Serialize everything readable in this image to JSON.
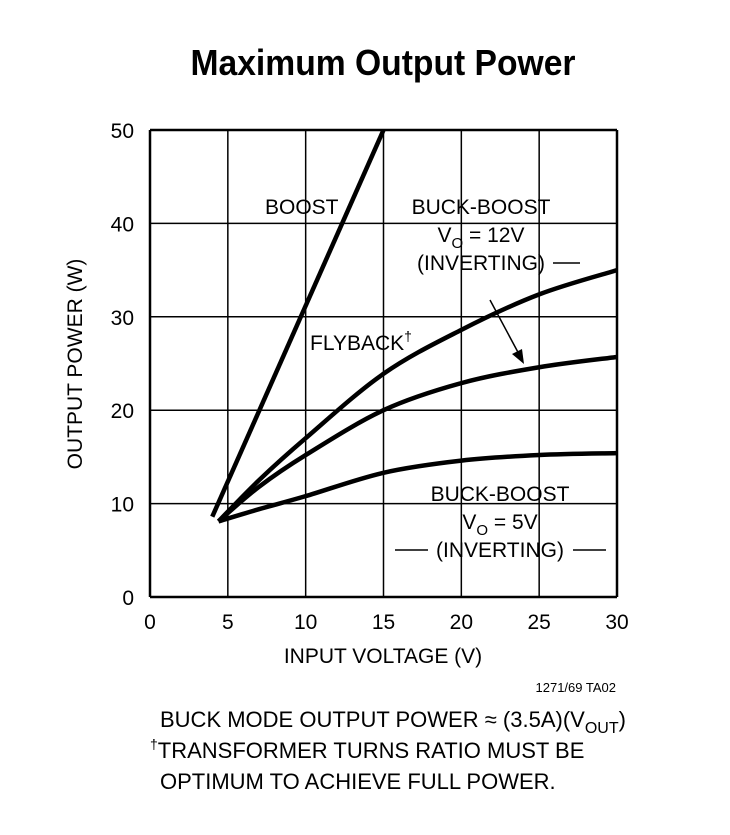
{
  "chart_data": {
    "type": "line",
    "title": "Maximum Output Power",
    "xlabel": "INPUT VOLTAGE (V)",
    "ylabel": "OUTPUT POWER (W)",
    "xlim": [
      0,
      30
    ],
    "ylim": [
      0,
      50
    ],
    "xticks": [
      "0",
      "5",
      "10",
      "15",
      "20",
      "25",
      "30"
    ],
    "yticks": [
      "0",
      "10",
      "20",
      "30",
      "40",
      "50"
    ],
    "grid": true,
    "series": [
      {
        "name": "BOOST",
        "x": [
          4,
          15
        ],
        "y": [
          8.6,
          50
        ]
      },
      {
        "name": "FLYBACK†",
        "x": [
          4.4,
          7,
          10,
          15,
          20,
          25,
          30
        ],
        "y": [
          8.1,
          12.5,
          17,
          23.9,
          28.6,
          32.4,
          35
        ]
      },
      {
        "name": "BUCK-BOOST VO = 12V (INVERTING)",
        "x": [
          4.4,
          7,
          10,
          15,
          20,
          25,
          30
        ],
        "y": [
          8.1,
          11.8,
          15.2,
          20,
          22.9,
          24.6,
          25.7
        ]
      },
      {
        "name": "BUCK-BOOST VO = 5V (INVERTING)",
        "x": [
          4.4,
          7,
          10,
          15,
          20,
          25,
          30
        ],
        "y": [
          8.1,
          9.4,
          10.8,
          13.3,
          14.6,
          15.2,
          15.4
        ]
      }
    ],
    "labels": {
      "boost": "BOOST",
      "flyback": "FLYBACK",
      "dagger": "†",
      "bb12_line1": "BUCK-BOOST",
      "bb12_line2_v": "V",
      "bb12_line2_sub": "O",
      "bb12_line2_rest": " = 12V",
      "bb12_line3": "(INVERTING)",
      "bb5_line1": "BUCK-BOOST",
      "bb5_line2_v": "V",
      "bb5_line2_sub": "O",
      "bb5_line2_rest": " = 5V",
      "bb5_line3": "(INVERTING)"
    },
    "figure_id": "1271/69 TA02"
  },
  "notes": {
    "line1_main": "BUCK MODE OUTPUT POWER ≈ (3.5A)(V",
    "line1_sub": "OUT",
    "line1_end": ")",
    "dagger": "†",
    "line2": "TRANSFORMER TURNS RATIO MUST BE",
    "line3": "OPTIMUM TO ACHIEVE FULL POWER."
  }
}
